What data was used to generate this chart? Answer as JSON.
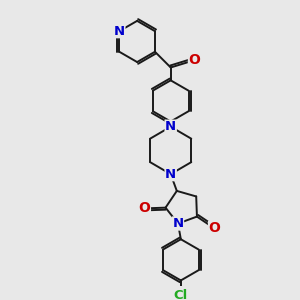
{
  "bg_color": "#e8e8e8",
  "bond_color": "#1a1a1a",
  "nitrogen_color": "#0000cc",
  "oxygen_color": "#cc0000",
  "chlorine_color": "#22aa22",
  "lw": 1.4,
  "dbo": 0.07,
  "fs": 9.5,
  "xlim": [
    0,
    10
  ],
  "ylim": [
    0,
    10
  ]
}
